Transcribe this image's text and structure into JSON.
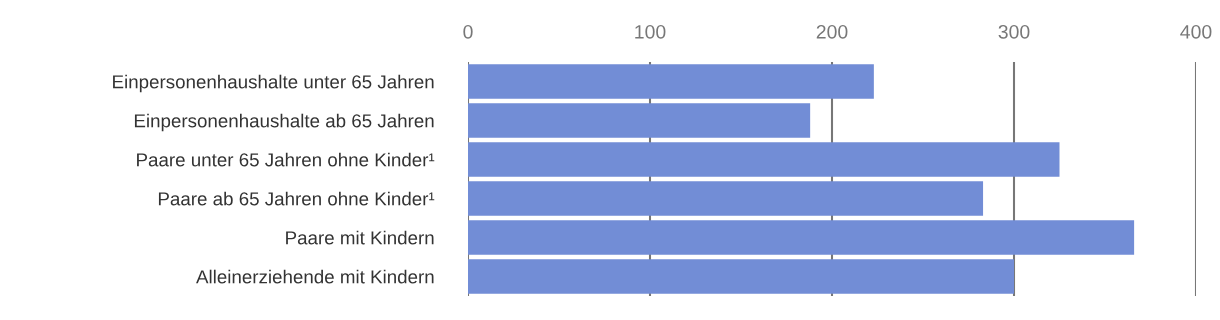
{
  "chart_data": {
    "type": "bar",
    "orientation": "horizontal",
    "categories": [
      "Einpersonenhaushalte unter 65 Jahren",
      "Einpersonenhaushalte ab 65 Jahren",
      "Paare unter 65 Jahren ohne Kinder¹",
      "Paare ab 65 Jahren ohne Kinder¹",
      "Paare mit Kindern",
      "Alleinerziehende mit Kindern"
    ],
    "values": [
      223,
      188,
      325,
      283,
      366,
      300
    ],
    "color": "#728dd6",
    "xlim": [
      0,
      400
    ],
    "xticks": [
      0,
      100,
      200,
      300,
      400
    ],
    "grid": "x",
    "legend": false
  }
}
